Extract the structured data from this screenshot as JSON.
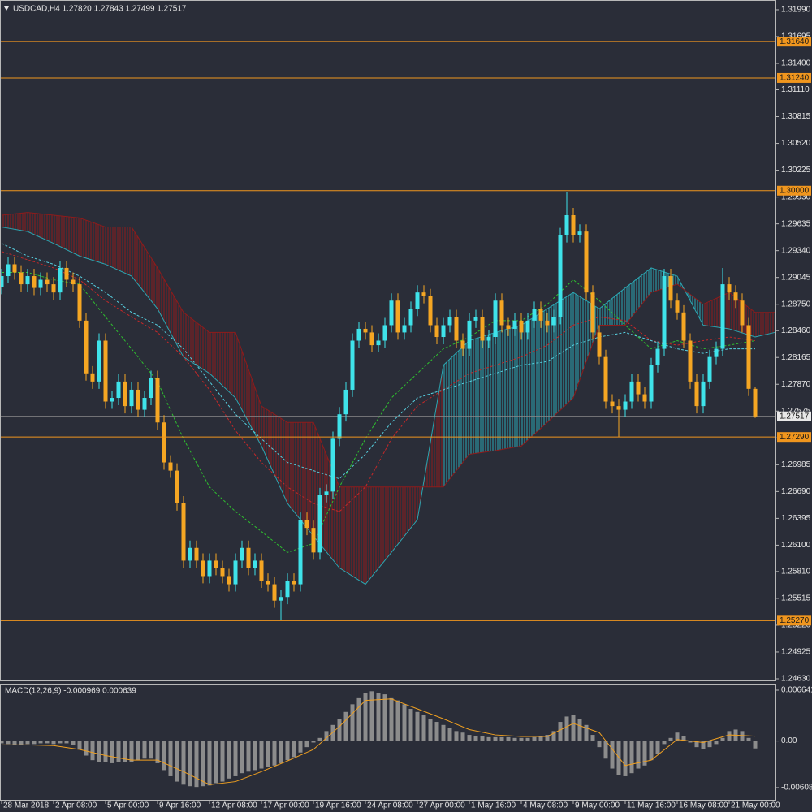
{
  "chart_data": [
    {
      "type": "candlestick",
      "title": "USDCAD,H4  1.27820 1.27843 1.27499 1.27517",
      "categories": [
        "28 Mar 2018",
        null,
        null,
        null,
        null,
        null,
        null,
        null,
        "2 Apr 08:00",
        null,
        null,
        null,
        null,
        null,
        null,
        null,
        "5 Apr 00:00",
        null,
        null,
        null,
        null,
        null,
        null,
        null,
        "9 Apr 16:00",
        null,
        null,
        null,
        null,
        null,
        null,
        null,
        "12 Apr 08:00",
        null,
        null,
        null,
        null,
        null,
        null,
        null,
        "17 Apr 00:00",
        null,
        null,
        null,
        null,
        null,
        null,
        null,
        "19 Apr 16:00",
        null,
        null,
        null,
        null,
        null,
        null,
        null,
        "24 Apr 08:00",
        null,
        null,
        null,
        null,
        null,
        null,
        null,
        "27 Apr 00:00",
        null,
        null,
        null,
        null,
        null,
        null,
        null,
        "1 May 16:00",
        null,
        null,
        null,
        null,
        null,
        null,
        null,
        "4 May 08:00",
        null,
        null,
        null,
        null,
        null,
        null,
        null,
        "9 May 00:00",
        null,
        null,
        null,
        null,
        null,
        null,
        null,
        "11 May 16:00",
        null,
        null,
        null,
        null,
        null,
        null,
        null,
        "16 May 08:00",
        null,
        null,
        null,
        null,
        null,
        null,
        null,
        "21 May 00:00",
        null,
        null,
        null,
        null
      ],
      "open": [
        1.2894,
        1.2906,
        1.2919,
        1.291,
        1.2897,
        1.2906,
        1.2893,
        1.2902,
        1.2897,
        1.2888,
        1.2915,
        1.2902,
        1.2897,
        1.2857,
        1.2799,
        1.279,
        1.2835,
        1.2768,
        1.2772,
        1.279,
        1.2763,
        1.2781,
        1.2759,
        1.2772,
        1.2794,
        1.2745,
        1.2701,
        1.2692,
        1.2656,
        1.2593,
        1.2607,
        1.2593,
        1.2576,
        1.2593,
        1.2585,
        1.2576,
        1.2567,
        1.2593,
        1.2607,
        1.2585,
        1.2593,
        1.2571,
        1.2567,
        1.2549,
        1.2553,
        1.2571,
        1.2567,
        1.2638,
        1.2629,
        1.2602,
        1.2665,
        1.2669,
        1.2727,
        1.2754,
        1.2781,
        1.2835,
        1.2848,
        1.2844,
        1.283,
        1.2835,
        1.2852,
        1.2879,
        1.2844,
        1.2852,
        1.287,
        1.2888,
        1.2884,
        1.2852,
        1.2839,
        1.2852,
        1.2861,
        1.2835,
        1.2826,
        1.2857,
        1.2861,
        1.2835,
        1.2839,
        1.2879,
        1.2852,
        1.2848,
        1.2857,
        1.2844,
        1.2857,
        1.287,
        1.2857,
        1.2852,
        1.2861,
        1.2951,
        1.2973,
        1.2951,
        1.2955,
        1.2888,
        1.2844,
        1.2817,
        1.2768,
        1.2763,
        1.2759,
        1.2768,
        1.279,
        1.2776,
        1.2768,
        1.2808,
        1.2826,
        1.2906,
        1.2879,
        1.2866,
        1.2835,
        1.279,
        1.2763,
        1.279,
        1.2817,
        1.2826,
        1.2897,
        1.2888,
        1.2879,
        1.2852,
        1.2782
      ],
      "high": [
        1.2914,
        1.2927,
        1.2927,
        1.2918,
        1.2914,
        1.2914,
        1.291,
        1.291,
        1.2905,
        1.2923,
        1.2923,
        1.291,
        1.2905,
        1.2865,
        1.2807,
        1.2843,
        1.2843,
        1.278,
        1.2798,
        1.2798,
        1.2789,
        1.2789,
        1.278,
        1.2802,
        1.2802,
        1.2753,
        1.2709,
        1.27,
        1.2664,
        1.2615,
        1.2615,
        1.2601,
        1.2601,
        1.2601,
        1.2593,
        1.2584,
        1.2601,
        1.2615,
        1.2615,
        1.2601,
        1.2601,
        1.2579,
        1.2575,
        1.2561,
        1.2579,
        1.2579,
        1.2646,
        1.2646,
        1.2637,
        1.2673,
        1.2677,
        1.2735,
        1.2762,
        1.2789,
        1.2843,
        1.2856,
        1.2856,
        1.2852,
        1.2843,
        1.286,
        1.2887,
        1.2887,
        1.286,
        1.2878,
        1.2896,
        1.2896,
        1.2892,
        1.286,
        1.286,
        1.2869,
        1.2869,
        1.2843,
        1.2865,
        1.2869,
        1.2869,
        1.2847,
        1.2887,
        1.2887,
        1.286,
        1.2865,
        1.2865,
        1.2865,
        1.2878,
        1.2878,
        1.2865,
        1.2869,
        1.2959,
        1.2998,
        1.2981,
        1.2963,
        1.2963,
        1.2896,
        1.2852,
        1.2825,
        1.2776,
        1.2771,
        1.2776,
        1.2798,
        1.2798,
        1.2784,
        1.2816,
        1.2834,
        1.2914,
        1.2914,
        1.2887,
        1.2874,
        1.2843,
        1.2798,
        1.2798,
        1.2825,
        1.2834,
        1.2915,
        1.2905,
        1.2896,
        1.2887,
        1.286,
        1.27843
      ],
      "low": [
        1.2886,
        1.2898,
        1.2902,
        1.2889,
        1.2889,
        1.2885,
        1.2885,
        1.2889,
        1.288,
        1.288,
        1.2894,
        1.2889,
        1.2849,
        1.2791,
        1.2782,
        1.2782,
        1.276,
        1.276,
        1.2764,
        1.2755,
        1.2755,
        1.2751,
        1.2751,
        1.2764,
        1.2737,
        1.2693,
        1.2684,
        1.2648,
        1.2585,
        1.2585,
        1.2585,
        1.2568,
        1.2568,
        1.2577,
        1.2568,
        1.2559,
        1.2559,
        1.2585,
        1.2577,
        1.2577,
        1.2563,
        1.2559,
        1.2541,
        1.2528,
        1.2545,
        1.2559,
        1.2559,
        1.2621,
        1.2594,
        1.2594,
        1.2657,
        1.2661,
        1.2719,
        1.2746,
        1.2773,
        1.2827,
        1.2836,
        1.2822,
        1.2822,
        1.2827,
        1.2844,
        1.2836,
        1.2836,
        1.2844,
        1.2862,
        1.2876,
        1.2844,
        1.2831,
        1.2831,
        1.2844,
        1.2827,
        1.2818,
        1.2818,
        1.2849,
        1.2827,
        1.2827,
        1.2831,
        1.2844,
        1.284,
        1.284,
        1.2836,
        1.2836,
        1.2849,
        1.2849,
        1.2844,
        1.2844,
        1.2853,
        1.2943,
        1.2943,
        1.2943,
        1.288,
        1.2836,
        1.2809,
        1.276,
        1.2755,
        1.2729,
        1.2751,
        1.276,
        1.2768,
        1.276,
        1.276,
        1.28,
        1.2818,
        1.2871,
        1.2858,
        1.2827,
        1.2782,
        1.2755,
        1.2755,
        1.2782,
        1.2809,
        1.2818,
        1.288,
        1.2871,
        1.2844,
        1.2774,
        1.27499
      ],
      "close": [
        1.2906,
        1.2919,
        1.291,
        1.2897,
        1.2906,
        1.2893,
        1.2902,
        1.2897,
        1.2888,
        1.2915,
        1.2902,
        1.2897,
        1.2857,
        1.2799,
        1.279,
        1.2835,
        1.2768,
        1.2772,
        1.279,
        1.2763,
        1.2781,
        1.2759,
        1.2772,
        1.2794,
        1.2745,
        1.2701,
        1.2692,
        1.2656,
        1.2593,
        1.2607,
        1.2593,
        1.2576,
        1.2593,
        1.2585,
        1.2576,
        1.2567,
        1.2593,
        1.2607,
        1.2585,
        1.2593,
        1.2571,
        1.2567,
        1.2549,
        1.2553,
        1.2571,
        1.2567,
        1.2638,
        1.2629,
        1.2602,
        1.2665,
        1.2669,
        1.2727,
        1.2754,
        1.2781,
        1.2835,
        1.2848,
        1.2844,
        1.283,
        1.2835,
        1.2852,
        1.2879,
        1.2844,
        1.2852,
        1.287,
        1.2888,
        1.2884,
        1.2852,
        1.2839,
        1.2852,
        1.2861,
        1.2835,
        1.2826,
        1.2857,
        1.2861,
        1.2835,
        1.2839,
        1.2879,
        1.2852,
        1.2848,
        1.2857,
        1.2844,
        1.2857,
        1.287,
        1.2857,
        1.2852,
        1.2861,
        1.2951,
        1.2973,
        1.2951,
        1.2955,
        1.2888,
        1.2844,
        1.2817,
        1.2768,
        1.2763,
        1.2759,
        1.2768,
        1.279,
        1.2776,
        1.2768,
        1.2808,
        1.2826,
        1.2906,
        1.2879,
        1.2866,
        1.2835,
        1.279,
        1.2763,
        1.279,
        1.2817,
        1.2826,
        1.2897,
        1.2888,
        1.2879,
        1.2852,
        1.2782,
        1.27517
      ],
      "up_color": "#3fe3ea",
      "down_color": "#f5a623",
      "indicator_x": [
        0,
        4,
        8,
        12,
        16,
        20,
        24,
        28,
        32,
        36,
        40,
        44,
        48,
        52,
        56,
        60,
        64,
        68,
        72,
        76,
        80,
        84,
        88,
        92,
        96,
        100,
        104,
        108,
        112,
        116
      ],
      "lines": [
        {
          "color": "#2fbf2f",
          "values": [
            1.291,
            1.291,
            1.2902,
            1.2897,
            1.2861,
            1.2826,
            1.279,
            1.2727,
            1.2674,
            1.2647,
            1.2625,
            1.2602,
            1.2612,
            1.2674,
            1.2727,
            1.2772,
            1.2799,
            1.2826,
            1.2839,
            1.2857,
            1.2857,
            1.2875,
            1.2902,
            1.2879,
            1.2852,
            1.2826,
            1.2835,
            1.2826,
            1.283,
            1.2835
          ]
        },
        {
          "color": "#c62828",
          "values": [
            1.2933,
            1.2924,
            1.2915,
            1.2902,
            1.2879,
            1.2861,
            1.2844,
            1.2817,
            1.2781,
            1.2736,
            1.2701,
            1.2674,
            1.2656,
            1.2647,
            1.2674,
            1.2727,
            1.2763,
            1.2781,
            1.2799,
            1.2808,
            1.2817,
            1.283,
            1.2852,
            1.2861,
            1.2857,
            1.2835,
            1.283,
            1.2835,
            1.2839,
            1.2835
          ]
        },
        {
          "color": "#57d0e0",
          "values": [
            1.2942,
            1.2928,
            1.2919,
            1.2906,
            1.2888,
            1.2866,
            1.2852,
            1.2826,
            1.279,
            1.2754,
            1.2727,
            1.2701,
            1.2692,
            1.2683,
            1.271,
            1.2745,
            1.2772,
            1.2781,
            1.279,
            1.2799,
            1.2808,
            1.2812,
            1.283,
            1.2839,
            1.2844,
            1.2835,
            1.2826,
            1.2821,
            1.2826,
            1.2826
          ]
        }
      ],
      "cloud": {
        "x": [
          0,
          4,
          8,
          12,
          16,
          20,
          24,
          28,
          32,
          36,
          40,
          44,
          48,
          52,
          56,
          60,
          64,
          68,
          72,
          76,
          80,
          84,
          88,
          92,
          96,
          100,
          104,
          108,
          112,
          116,
          119
        ],
        "span_a": [
          1.296,
          1.2955,
          1.2942,
          1.2928,
          1.2919,
          1.2906,
          1.287,
          1.2817,
          1.2799,
          1.2772,
          1.2719,
          1.2656,
          1.262,
          1.2585,
          1.2567,
          1.2602,
          1.2638,
          1.2808,
          1.2835,
          1.2844,
          1.2852,
          1.287,
          1.2888,
          1.287,
          1.2893,
          1.2915,
          1.2906,
          1.2852,
          1.2848,
          1.2839,
          1.2844
        ],
        "span_b": [
          1.2973,
          1.2976,
          1.2973,
          1.297,
          1.296,
          1.296,
          1.2915,
          1.2866,
          1.2844,
          1.2844,
          1.2763,
          1.2745,
          1.2745,
          1.2674,
          1.2674,
          1.2674,
          1.2674,
          1.2674,
          1.271,
          1.2714,
          1.2719,
          1.2745,
          1.2772,
          1.2852,
          1.2852,
          1.2888,
          1.2897,
          1.2875,
          1.2888,
          1.2866,
          1.2866
        ],
        "bull_color": "#2ba7b3",
        "bear_color": "#8e1b1b"
      },
      "levels": [
        {
          "value": 1.3164,
          "label": "1.31640"
        },
        {
          "value": 1.3124,
          "label": "1.31240"
        },
        {
          "value": 1.3,
          "label": "1.30000"
        },
        {
          "value": 1.2729,
          "label": "1.27290"
        },
        {
          "value": 1.2527,
          "label": "1.25270"
        }
      ],
      "level_color": "#f0961e",
      "current": 1.27517,
      "current_color": "#8a8a8a",
      "ylim": [
        1.24612,
        1.32097
      ],
      "yticks": [
        {
          "value": 1.3199,
          "label": "1.31990"
        },
        {
          "value": 1.31695,
          "label": "1.31695"
        },
        {
          "value": 1.314,
          "label": "1.31400"
        },
        {
          "value": 1.3111,
          "label": "1.31110"
        },
        {
          "value": 1.30815,
          "label": "1.30815"
        },
        {
          "value": 1.3052,
          "label": "1.30520"
        },
        {
          "value": 1.30225,
          "label": "1.30225"
        },
        {
          "value": 1.2993,
          "label": "1.29930"
        },
        {
          "value": 1.29635,
          "label": "1.29635"
        },
        {
          "value": 1.2934,
          "label": "1.29340"
        },
        {
          "value": 1.29045,
          "label": "1.29045"
        },
        {
          "value": 1.2875,
          "label": "1.28750"
        },
        {
          "value": 1.2846,
          "label": "1.28460"
        },
        {
          "value": 1.28165,
          "label": "1.28165"
        },
        {
          "value": 1.2787,
          "label": "1.27870"
        },
        {
          "value": 1.27575,
          "label": "1.27575"
        },
        {
          "value": 1.2728,
          "label": "1.27280"
        },
        {
          "value": 1.26985,
          "label": "1.26985"
        },
        {
          "value": 1.2669,
          "label": "1.26690"
        },
        {
          "value": 1.26395,
          "label": "1.26395"
        },
        {
          "value": 1.261,
          "label": "1.26100"
        },
        {
          "value": 1.2581,
          "label": "1.25810"
        },
        {
          "value": 1.25515,
          "label": "1.25515"
        },
        {
          "value": 1.2522,
          "label": "1.25220"
        },
        {
          "value": 1.24925,
          "label": "1.24925"
        },
        {
          "value": 1.2463,
          "label": "1.24630"
        }
      ]
    },
    {
      "type": "macd",
      "title": "MACD(12,26,9) -0.000969 0.000639",
      "histogram": {
        "color": "#8c8c8c",
        "values": [
          -0.0003,
          -0.0004,
          -0.0005,
          -0.0005,
          -0.0004,
          -0.0004,
          -0.0003,
          -0.0003,
          -0.0004,
          -0.0003,
          -0.0003,
          -0.0005,
          -0.0011,
          -0.0019,
          -0.0025,
          -0.0027,
          -0.0027,
          -0.0029,
          -0.0028,
          -0.0027,
          -0.0027,
          -0.0025,
          -0.0023,
          -0.0023,
          -0.0029,
          -0.0038,
          -0.0046,
          -0.0053,
          -0.0057,
          -0.0059,
          -0.006,
          -0.0059,
          -0.0058,
          -0.0055,
          -0.0053,
          -0.0049,
          -0.0046,
          -0.0042,
          -0.004,
          -0.0038,
          -0.0036,
          -0.0034,
          -0.0032,
          -0.0029,
          -0.0025,
          -0.0021,
          -0.0015,
          -0.0008,
          -0.0002,
          0.0004,
          0.0013,
          0.0021,
          0.0029,
          0.0038,
          0.0048,
          0.0057,
          0.0063,
          0.0065,
          0.0063,
          0.0061,
          0.0057,
          0.0053,
          0.0048,
          0.0042,
          0.0038,
          0.0034,
          0.0029,
          0.0025,
          0.0021,
          0.0017,
          0.0013,
          0.0011,
          0.0008,
          0.0007,
          0.0006,
          0.0005,
          0.0005,
          0.0005,
          0.0005,
          0.0004,
          0.0004,
          0.0004,
          0.0005,
          0.0006,
          0.0008,
          0.0013,
          0.0025,
          0.0032,
          0.0034,
          0.0029,
          0.0021,
          0.0008,
          -0.0008,
          -0.0023,
          -0.0036,
          -0.0044,
          -0.0046,
          -0.0042,
          -0.0036,
          -0.0032,
          -0.0025,
          -0.0017,
          -0.0004,
          0.0004,
          0.0011,
          0.0006,
          -0.0002,
          -0.0008,
          -0.0011,
          -0.0008,
          -0.0004,
          0.0004,
          0.0013,
          0.0015,
          0.0013,
          0.0004,
          -0.000969
        ]
      },
      "signal": {
        "color": "#f0a020",
        "x": [
          0,
          4,
          8,
          12,
          16,
          20,
          24,
          28,
          32,
          36,
          40,
          44,
          48,
          52,
          56,
          60,
          64,
          68,
          72,
          76,
          80,
          84,
          88,
          92,
          96,
          100,
          104,
          108,
          112,
          116
        ],
        "values": [
          -0.0005,
          -0.0005,
          -0.0006,
          -0.0011,
          -0.0019,
          -0.0025,
          -0.0025,
          -0.004,
          -0.0057,
          -0.0053,
          -0.004,
          -0.0026,
          -0.0011,
          0.0019,
          0.0053,
          0.0055,
          0.0042,
          0.0029,
          0.0015,
          0.0008,
          0.0006,
          0.0006,
          0.0023,
          0.0011,
          -0.0032,
          -0.0025,
          0.0002,
          -0.0002,
          0.0008,
          0.000639
        ]
      },
      "ylim": [
        -0.00768,
        0.00749
      ],
      "yticks": [
        0.006641,
        {
          "value": 0,
          "label": "0.00"
        },
        -0.006085
      ]
    }
  ]
}
